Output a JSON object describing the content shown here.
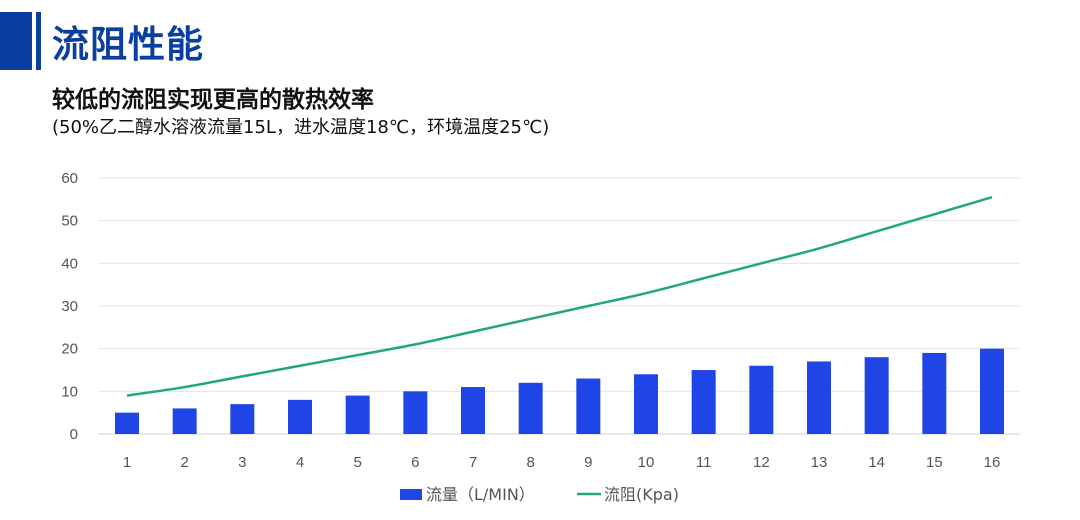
{
  "header": {
    "title": "流阻性能",
    "subtitle": "较低的流阻实现更高的散热效率",
    "note": "(50%乙二醇水溶液流量15L，进水温度18℃，环境温度25℃)",
    "accent_color": "#0a3fa0"
  },
  "chart_data": {
    "type": "bar+line",
    "categories": [
      "1",
      "2",
      "3",
      "4",
      "5",
      "6",
      "7",
      "8",
      "9",
      "10",
      "11",
      "12",
      "13",
      "14",
      "15",
      "16"
    ],
    "series": [
      {
        "name": "流量（L/MIN）",
        "type": "bar",
        "color": "#1f45e6",
        "values": [
          5,
          6,
          7,
          8,
          9,
          10,
          11,
          12,
          13,
          14,
          15,
          16,
          17,
          18,
          19,
          20
        ]
      },
      {
        "name": "流阻(Kpa)",
        "type": "line",
        "color": "#22a777",
        "values": [
          9,
          11,
          13.5,
          16,
          18.5,
          21,
          24,
          27,
          30,
          33,
          36.5,
          40,
          43.5,
          47.5,
          51.5,
          55.5
        ]
      }
    ],
    "ylim": [
      0,
      60
    ],
    "yticks": [
      0,
      10,
      20,
      30,
      40,
      50,
      60
    ],
    "grid": true,
    "legend": "bottom"
  }
}
